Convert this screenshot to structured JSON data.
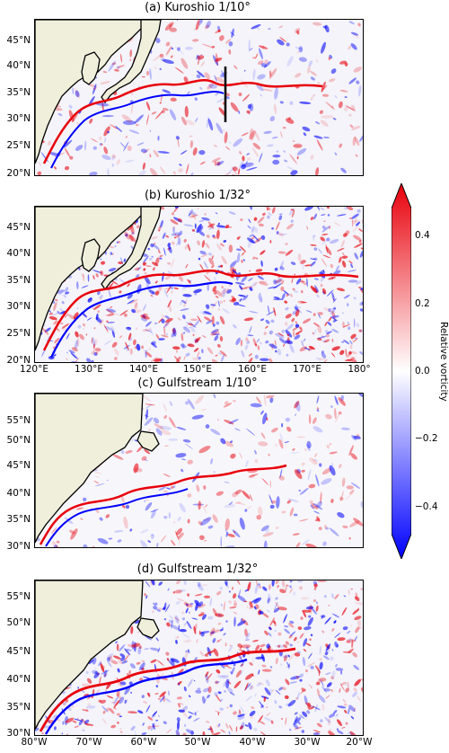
{
  "panels": [
    {
      "id": "a",
      "title": "(a) Kuroshio 1/10°",
      "yticks": [
        "45°N",
        "40°N",
        "35°N",
        "30°N",
        "25°N",
        "20°N"
      ]
    },
    {
      "id": "b",
      "title": "(b) Kuroshio 1/32°",
      "yticks": [
        "45°N",
        "40°N",
        "35°N",
        "30°N",
        "25°N",
        "20°N"
      ],
      "xticks": [
        "120°E",
        "130°E",
        "140°E",
        "150°E",
        "160°E",
        "170°E",
        "180°"
      ]
    },
    {
      "id": "c",
      "title": "(c) Gulfstream 1/10°",
      "yticks": [
        "55°N",
        "50°N",
        "45°N",
        "40°N",
        "35°N",
        "30°N"
      ]
    },
    {
      "id": "d",
      "title": "(d) Gulfstream 1/32°",
      "yticks": [
        "55°N",
        "50°N",
        "45°N",
        "40°N",
        "35°N",
        "30°N"
      ],
      "xticks": [
        "80°W",
        "70°W",
        "60°W",
        "50°W",
        "40°W",
        "30°W",
        "20°W"
      ]
    }
  ],
  "colorbar": {
    "label": "Relative vorticity",
    "ticks": [
      "0.4",
      "0.2",
      "0.0",
      "−0.2",
      "−0.4"
    ],
    "colors": {
      "positive": "#e8000b",
      "zero": "#ffffff",
      "negative": "#0000ff"
    }
  },
  "colors": {
    "land": "#efefdc",
    "coast": "#000000"
  }
}
